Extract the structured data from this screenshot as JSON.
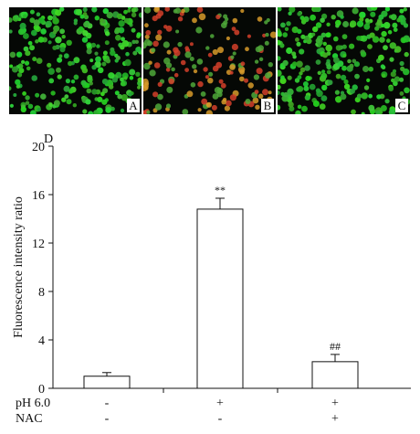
{
  "panels": [
    {
      "letter": "A",
      "style": "green"
    },
    {
      "letter": "B",
      "style": "mixed"
    },
    {
      "letter": "C",
      "style": "green"
    }
  ],
  "colors": {
    "green": "#2ec42e",
    "red": "#d4402a",
    "orange": "#d79a2a",
    "background": "#050805"
  },
  "chart_data": {
    "type": "bar",
    "panel_letter": "D",
    "ylabel": "Fluorescence intensity ratio",
    "ylim": [
      0,
      20
    ],
    "yticks": [
      "0",
      "4",
      "8",
      "12",
      "16",
      "20"
    ],
    "values": [
      1.0,
      14.8,
      2.2
    ],
    "errors": [
      0.3,
      0.9,
      0.6
    ],
    "annotations": [
      "",
      "**",
      "##"
    ],
    "conditions": [
      {
        "label": "pH 6.0",
        "marks": [
          "-",
          "+",
          "+"
        ]
      },
      {
        "label": "NAC",
        "marks": [
          "-",
          "-",
          "+"
        ]
      }
    ]
  }
}
